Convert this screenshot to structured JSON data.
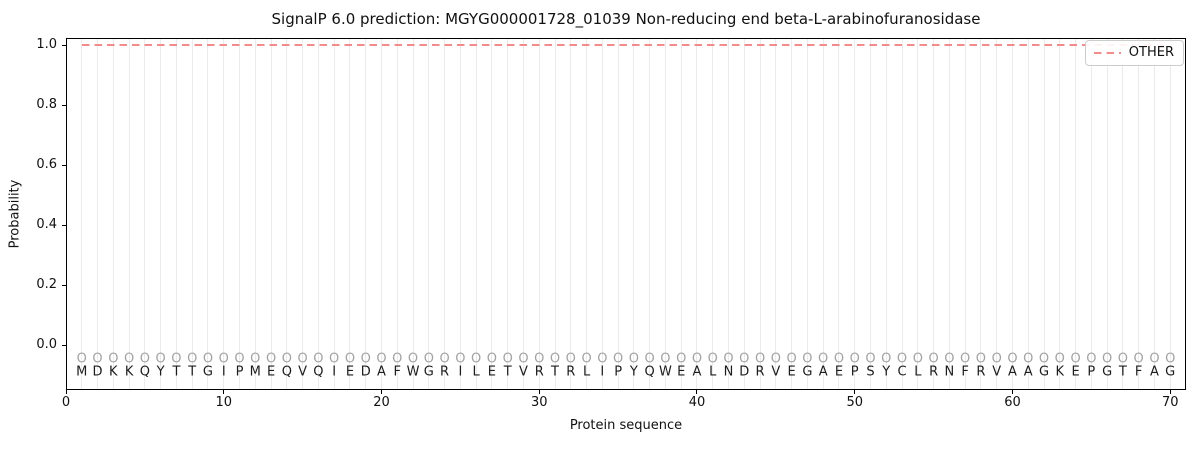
{
  "chart_data": {
    "type": "line",
    "title": "SignalP 6.0 prediction: MGYG000001728_01039 Non-reducing end beta-L-arabinofuranosidase",
    "xlabel": "Protein sequence",
    "ylabel": "Probability",
    "xlim": [
      0,
      71
    ],
    "ylim": [
      -0.15,
      1.025
    ],
    "xticks": [
      0,
      10,
      20,
      30,
      40,
      50,
      60,
      70
    ],
    "xtick_labels": [
      "0",
      "10",
      "20",
      "30",
      "40",
      "50",
      "60",
      "70"
    ],
    "yticks": [
      0.0,
      0.2,
      0.4,
      0.6,
      0.8,
      1.0
    ],
    "ytick_labels": [
      "0.0",
      "0.2",
      "0.4",
      "0.6",
      "0.8",
      "1.0"
    ],
    "grid": {
      "vertical_per_residue": true,
      "horizontal": false,
      "color": "#ebebeb"
    },
    "sequence": "MDKKQYTTGIPMEQVQIEDAFWGRILETVRTRLIPYQWEALNDRVEGAEPSYCLRNFRVAAGKEPGTFAG",
    "per_position_prediction": "OOOOOOOOOOOOOOOOOOOOOOOOOOOOOOOOOOOOOOOOOOOOOOOOOOOOOOOOOOOOOOOOOOOOOO",
    "marker_row_y": -0.045,
    "sequence_row_y": -0.09,
    "series": [
      {
        "name": "OTHER",
        "color": "#f28b8b",
        "linestyle": "dashed",
        "x_start": 1,
        "x_end": 70,
        "y_constant": 1.0
      }
    ],
    "legend": {
      "position": "upper right",
      "entries": [
        {
          "label": "OTHER",
          "color": "#f28b8b",
          "linestyle": "dashed"
        }
      ]
    }
  }
}
